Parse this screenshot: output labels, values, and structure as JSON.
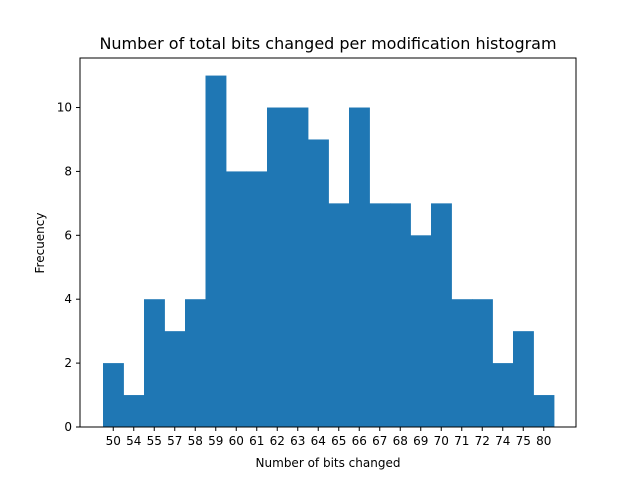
{
  "chart_data": {
    "type": "bar",
    "title": "Number of total bits changed per modification histogram",
    "xlabel": "Number of bits changed",
    "ylabel": "Frecuency",
    "categories": [
      "50",
      "54",
      "55",
      "57",
      "58",
      "59",
      "60",
      "61",
      "62",
      "63",
      "64",
      "65",
      "66",
      "67",
      "68",
      "69",
      "70",
      "71",
      "72",
      "74",
      "75",
      "80"
    ],
    "values": [
      2,
      1,
      4,
      3,
      4,
      11,
      8,
      8,
      10,
      10,
      9,
      7,
      10,
      7,
      7,
      6,
      7,
      4,
      4,
      2,
      3,
      1
    ],
    "ylim": [
      0,
      11.55
    ],
    "yticks": [
      0,
      2,
      4,
      6,
      8,
      10
    ],
    "grid": false,
    "bar_color": "#1f77b4"
  }
}
